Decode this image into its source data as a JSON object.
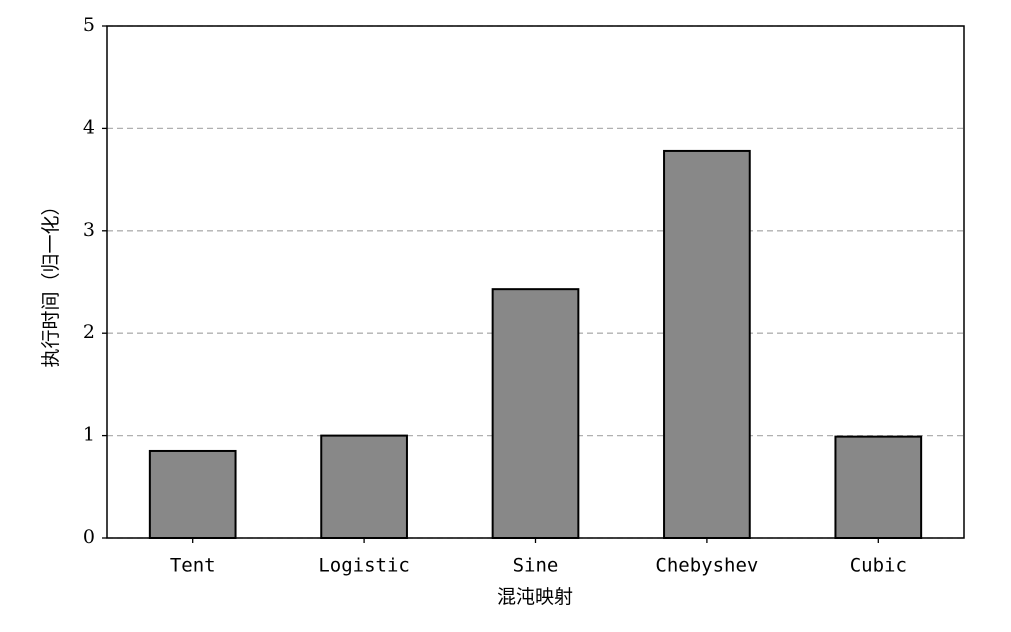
{
  "chart_data": {
    "type": "bar",
    "x_label": "混沌映射",
    "y_label": "执行时间（归一化）",
    "categories": [
      "Tent",
      "Logistic",
      "Sine",
      "Chebyshev",
      "Cubic"
    ],
    "values": [
      0.85,
      1.0,
      2.43,
      3.78,
      0.99
    ],
    "color": "#888888",
    "ylim": [
      0,
      5
    ],
    "yticks": [
      0,
      1,
      2,
      3,
      4,
      5
    ],
    "grid": true
  }
}
